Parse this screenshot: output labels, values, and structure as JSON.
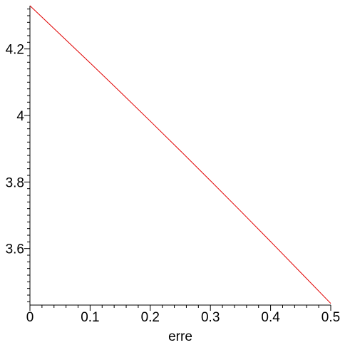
{
  "chart_data": {
    "type": "line",
    "title": "",
    "xlabel": "erre",
    "ylabel": "",
    "xlim": [
      0,
      0.5
    ],
    "ylim": [
      3.43,
      4.33
    ],
    "x_ticks": [
      0,
      0.1,
      0.2,
      0.3,
      0.4,
      0.5
    ],
    "x_tick_labels": [
      "0",
      "0.1",
      "0.2",
      "0.3",
      "0.4",
      "0.5"
    ],
    "y_ticks": [
      3.6,
      3.8,
      4.0,
      4.2
    ],
    "y_tick_labels": [
      "3.6",
      "3.8",
      "4",
      "4.2"
    ],
    "grid": false,
    "series": [
      {
        "color": "#e00000",
        "x": [
          0,
          0.05,
          0.1,
          0.15,
          0.2,
          0.25,
          0.3,
          0.35,
          0.4,
          0.45,
          0.5
        ],
        "y": [
          4.33,
          4.244,
          4.158,
          4.071,
          3.983,
          3.894,
          3.804,
          3.713,
          3.621,
          3.528,
          3.435
        ]
      }
    ]
  }
}
